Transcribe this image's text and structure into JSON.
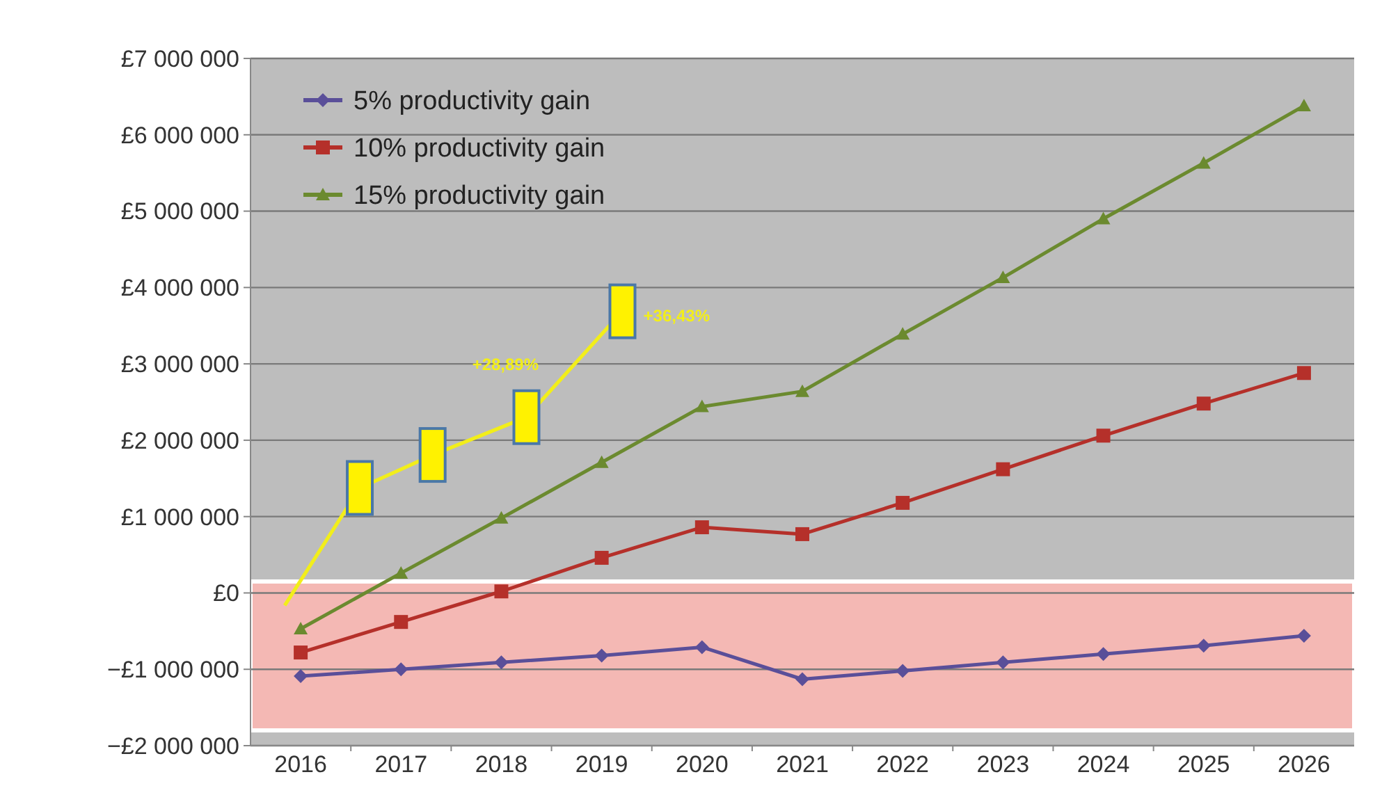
{
  "chart_data": {
    "type": "line",
    "categories": [
      "2016",
      "2017",
      "2018",
      "2019",
      "2020",
      "2021",
      "2022",
      "2023",
      "2024",
      "2025",
      "2026"
    ],
    "ylim": [
      -2000000,
      7000000
    ],
    "yticks": [
      {
        "value": -2000000,
        "label": "−£2 000 000"
      },
      {
        "value": -1000000,
        "label": "−£1 000 000"
      },
      {
        "value": 0,
        "label": "£0"
      },
      {
        "value": 1000000,
        "label": "£1 000 000"
      },
      {
        "value": 2000000,
        "label": "£2 000 000"
      },
      {
        "value": 3000000,
        "label": "£3 000 000"
      },
      {
        "value": 4000000,
        "label": "£4 000 000"
      },
      {
        "value": 5000000,
        "label": "£5 000 000"
      },
      {
        "value": 6000000,
        "label": "£6 000 000"
      },
      {
        "value": 7000000,
        "label": "£7 000 000"
      }
    ],
    "grid": "y",
    "legend": "top left",
    "series": [
      {
        "name": "5% productivity gain",
        "color": "#5a4f99",
        "marker": "diamond",
        "values": [
          -1090000,
          -1000000,
          -910000,
          -820000,
          -710000,
          -1130000,
          -1020000,
          -910000,
          -800000,
          -690000,
          -560000
        ]
      },
      {
        "name": "10% productivity gain",
        "color": "#b5302a",
        "marker": "square",
        "values": [
          -780000,
          -380000,
          20000,
          460000,
          860000,
          770000,
          1180000,
          1620000,
          2060000,
          2480000,
          2880000
        ]
      },
      {
        "name": "15% productivity gain",
        "color": "#6b8a2f",
        "marker": "triangle",
        "values": [
          -470000,
          260000,
          980000,
          1710000,
          2440000,
          2640000,
          3390000,
          4130000,
          4900000,
          5630000,
          6380000
        ]
      }
    ],
    "bands": [
      {
        "axis": "y",
        "from": -1800000,
        "to": 150000,
        "color": "#f4b8b4"
      }
    ],
    "annotations": [
      "+28,89%",
      "+36,43%"
    ]
  }
}
